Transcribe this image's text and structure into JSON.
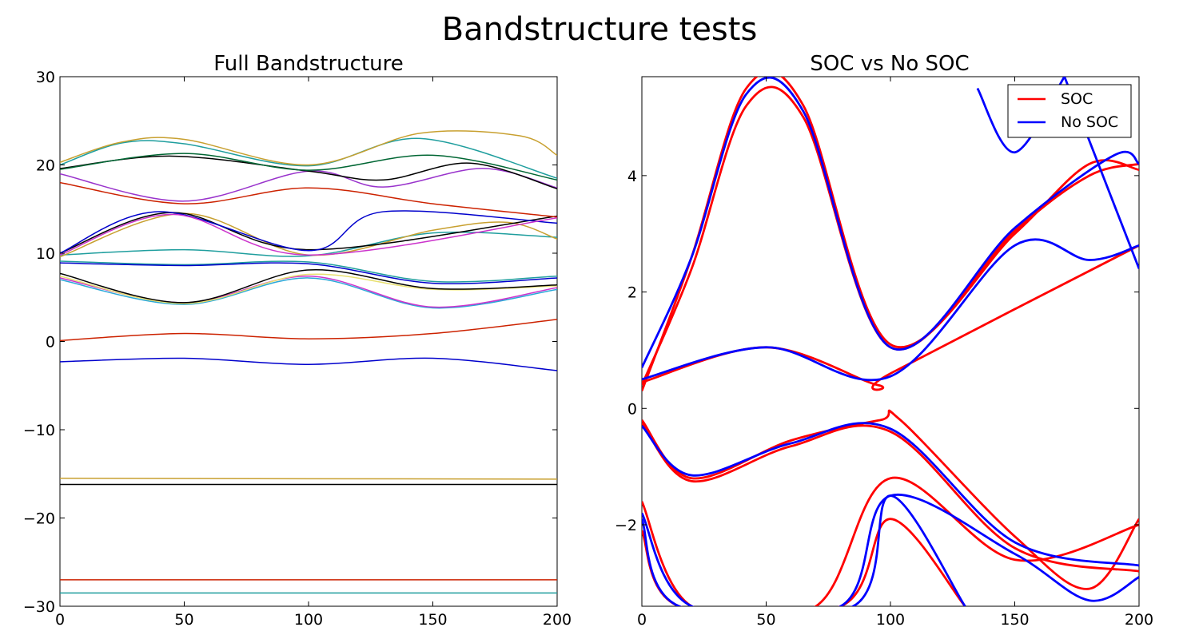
{
  "figure": {
    "suptitle": "Bandstructure tests"
  },
  "chart_data": [
    {
      "type": "line",
      "title": "Full Bandstructure",
      "xlabel": "",
      "ylabel": "",
      "xlim": [
        0,
        200
      ],
      "ylim": [
        -30,
        30
      ],
      "xticks": [
        0,
        50,
        100,
        150,
        200
      ],
      "yticks": [
        -30,
        -20,
        -10,
        0,
        10,
        20,
        30
      ],
      "grid": false,
      "series": [
        {
          "color": "#1f9e9e",
          "points": [
            [
              0,
              -28.5
            ],
            [
              200,
              -28.5
            ]
          ]
        },
        {
          "color": "#cc2200",
          "points": [
            [
              0,
              -27.0
            ],
            [
              200,
              -27.0
            ]
          ]
        },
        {
          "color": "#000000",
          "points": [
            [
              0,
              -16.2
            ],
            [
              200,
              -16.2
            ]
          ]
        },
        {
          "color": "#c8a030",
          "points": [
            [
              0,
              -15.5
            ],
            [
              200,
              -15.6
            ]
          ]
        },
        {
          "color": "#0000cc",
          "points": [
            [
              0,
              -2.3
            ],
            [
              50,
              -1.9
            ],
            [
              100,
              -2.6
            ],
            [
              150,
              -1.9
            ],
            [
              200,
              -3.3
            ]
          ]
        },
        {
          "color": "#cc2200",
          "points": [
            [
              0,
              0.1
            ],
            [
              50,
              0.9
            ],
            [
              100,
              0.3
            ],
            [
              150,
              0.9
            ],
            [
              200,
              2.5
            ]
          ]
        },
        {
          "color": "#2aa8d8",
          "points": [
            [
              0,
              7.0
            ],
            [
              50,
              4.2
            ],
            [
              100,
              7.2
            ],
            [
              150,
              3.8
            ],
            [
              200,
              5.9
            ]
          ]
        },
        {
          "color": "#cc33cc",
          "points": [
            [
              0,
              7.2
            ],
            [
              50,
              4.4
            ],
            [
              100,
              7.4
            ],
            [
              150,
              3.9
            ],
            [
              200,
              6.1
            ]
          ]
        },
        {
          "color": "#e8e070",
          "points": [
            [
              0,
              7.4
            ],
            [
              50,
              4.3
            ],
            [
              100,
              7.6
            ],
            [
              150,
              5.9
            ],
            [
              200,
              6.3
            ]
          ]
        },
        {
          "color": "#000000",
          "points": [
            [
              0,
              7.7
            ],
            [
              50,
              4.4
            ],
            [
              100,
              8.1
            ],
            [
              150,
              6.0
            ],
            [
              200,
              6.4
            ]
          ]
        },
        {
          "color": "#1f9e9e",
          "points": [
            [
              0,
              9.1
            ],
            [
              50,
              8.7
            ],
            [
              100,
              9.0
            ],
            [
              150,
              6.8
            ],
            [
              200,
              7.4
            ]
          ]
        },
        {
          "color": "#0000cc",
          "points": [
            [
              0,
              8.9
            ],
            [
              50,
              8.6
            ],
            [
              100,
              8.8
            ],
            [
              150,
              6.6
            ],
            [
              200,
              7.2
            ]
          ]
        },
        {
          "color": "#1f9e9e",
          "points": [
            [
              0,
              9.8
            ],
            [
              50,
              10.4
            ],
            [
              100,
              9.7
            ],
            [
              150,
              12.3
            ],
            [
              200,
              11.8
            ]
          ]
        },
        {
          "color": "#c8a030",
          "points": [
            [
              0,
              9.6
            ],
            [
              50,
              14.5
            ],
            [
              100,
              9.8
            ],
            [
              150,
              12.6
            ],
            [
              180,
              13.5
            ],
            [
              200,
              11.6
            ]
          ]
        },
        {
          "color": "#000000",
          "points": [
            [
              0,
              10.0
            ],
            [
              45,
              14.6
            ],
            [
              100,
              10.4
            ],
            [
              200,
              14.2
            ]
          ]
        },
        {
          "color": "#0000cc",
          "points": [
            [
              0,
              10.0
            ],
            [
              40,
              14.7
            ],
            [
              100,
              10.3
            ],
            [
              130,
              14.7
            ],
            [
              200,
              13.4
            ]
          ]
        },
        {
          "color": "#cc33cc",
          "points": [
            [
              0,
              9.8
            ],
            [
              45,
              14.4
            ],
            [
              100,
              9.8
            ],
            [
              200,
              14.0
            ]
          ]
        },
        {
          "color": "#cc2200",
          "points": [
            [
              0,
              18.0
            ],
            [
              50,
              15.6
            ],
            [
              100,
              17.4
            ],
            [
              150,
              15.6
            ],
            [
              200,
              14.1
            ]
          ]
        },
        {
          "color": "#9933cc",
          "points": [
            [
              0,
              19.0
            ],
            [
              50,
              15.9
            ],
            [
              100,
              19.3
            ],
            [
              130,
              17.5
            ],
            [
              170,
              19.6
            ],
            [
              200,
              17.4
            ]
          ]
        },
        {
          "color": "#000000",
          "points": [
            [
              0,
              19.6
            ],
            [
              45,
              21.0
            ],
            [
              100,
              19.3
            ],
            [
              130,
              18.3
            ],
            [
              165,
              20.2
            ],
            [
              200,
              17.3
            ]
          ]
        },
        {
          "color": "#006633",
          "points": [
            [
              0,
              19.5
            ],
            [
              50,
              21.3
            ],
            [
              100,
              19.4
            ],
            [
              150,
              21.1
            ],
            [
              200,
              18.3
            ]
          ]
        },
        {
          "color": "#1f9e9e",
          "points": [
            [
              0,
              20.0
            ],
            [
              25,
              22.5
            ],
            [
              50,
              22.4
            ],
            [
              100,
              19.9
            ],
            [
              145,
              23.0
            ],
            [
              200,
              18.5
            ]
          ]
        },
        {
          "color": "#c8a030",
          "points": [
            [
              0,
              20.3
            ],
            [
              25,
              22.6
            ],
            [
              50,
              22.9
            ],
            [
              100,
              20.0
            ],
            [
              145,
              23.6
            ],
            [
              185,
              23.3
            ],
            [
              200,
              21.1
            ]
          ]
        }
      ]
    },
    {
      "type": "line",
      "title": "SOC vs No SOC",
      "xlabel": "",
      "ylabel": "",
      "xlim": [
        0,
        200
      ],
      "ylim": [
        -3.4,
        5.7
      ],
      "xticks": [
        0,
        50,
        100,
        150,
        200
      ],
      "yticks": [
        -2,
        0,
        2,
        4
      ],
      "grid": false,
      "legend": {
        "position": "top-right",
        "entries": [
          {
            "label": "SOC",
            "color": "#ff0000"
          },
          {
            "label": "No SOC",
            "color": "#0000ff"
          }
        ]
      },
      "series": [
        {
          "name": "SOC",
          "color": "#ff0000",
          "points": [
            [
              0,
              0.3
            ],
            [
              20,
              2.6
            ],
            [
              42,
              5.5
            ],
            [
              65,
              5.2
            ],
            [
              100,
              1.1
            ],
            [
              150,
              3.0
            ],
            [
              180,
              4.2
            ],
            [
              200,
              4.1
            ]
          ]
        },
        {
          "name": "SOC",
          "color": "#ff0000",
          "points": [
            [
              0,
              0.4
            ],
            [
              20,
              2.4
            ],
            [
              42,
              5.2
            ],
            [
              65,
              5.0
            ],
            [
              100,
              1.05
            ],
            [
              150,
              3.05
            ],
            [
              180,
              4.0
            ],
            [
              200,
              4.2
            ]
          ]
        },
        {
          "name": "SOC",
          "color": "#ff0000",
          "points": [
            [
              0,
              0.45
            ],
            [
              50,
              1.05
            ],
            [
              95,
              0.4
            ],
            [
              100,
              0.6
            ],
            [
              200,
              2.8
            ]
          ]
        },
        {
          "name": "SOC",
          "color": "#ff0000",
          "points": [
            [
              0,
              -0.2
            ],
            [
              20,
              -1.2
            ],
            [
              60,
              -0.55
            ],
            [
              96,
              -0.2
            ],
            [
              104,
              -0.2
            ],
            [
              150,
              -2.2
            ],
            [
              180,
              -3.1
            ],
            [
              200,
              -1.9
            ]
          ]
        },
        {
          "name": "SOC",
          "color": "#ff0000",
          "points": [
            [
              0,
              -0.25
            ],
            [
              20,
              -1.25
            ],
            [
              60,
              -0.65
            ],
            [
              100,
              -0.4
            ],
            [
              150,
              -2.4
            ],
            [
              200,
              -2.8
            ]
          ]
        },
        {
          "name": "SOC",
          "color": "#ff0000",
          "points": [
            [
              0,
              -1.6
            ],
            [
              20,
              -3.4
            ],
            [
              70,
              -3.4
            ],
            [
              100,
              -1.2
            ],
            [
              150,
              -2.6
            ],
            [
              200,
              -2.0
            ]
          ]
        },
        {
          "name": "SOC",
          "color": "#ff0000",
          "points": [
            [
              0,
              -2.1
            ],
            [
              15,
              -3.4
            ],
            [
              80,
              -3.4
            ],
            [
              100,
              -1.9
            ],
            [
              130,
              -3.4
            ]
          ]
        },
        {
          "name": "No SOC",
          "color": "#0000ff",
          "points": [
            [
              0,
              0.7
            ],
            [
              20,
              2.6
            ],
            [
              42,
              5.4
            ],
            [
              65,
              5.1
            ],
            [
              100,
              1.05
            ],
            [
              150,
              3.1
            ],
            [
              190,
              4.35
            ],
            [
              200,
              4.2
            ]
          ]
        },
        {
          "name": "No SOC",
          "color": "#0000ff",
          "points": [
            [
              0,
              0.5
            ],
            [
              50,
              1.05
            ],
            [
              100,
              0.55
            ],
            [
              150,
              2.8
            ],
            [
              180,
              2.55
            ],
            [
              200,
              2.8
            ]
          ]
        },
        {
          "name": "No SOC",
          "color": "#0000ff",
          "points": [
            [
              0,
              -0.3
            ],
            [
              20,
              -1.15
            ],
            [
              60,
              -0.6
            ],
            [
              100,
              -0.35
            ],
            [
              150,
              -2.3
            ],
            [
              200,
              -2.7
            ]
          ]
        },
        {
          "name": "No SOC",
          "color": "#0000ff",
          "points": [
            [
              0,
              -1.8
            ],
            [
              20,
              -3.4
            ],
            [
              80,
              -3.4
            ],
            [
              100,
              -1.5
            ],
            [
              150,
              -2.5
            ],
            [
              180,
              -3.3
            ],
            [
              200,
              -2.9
            ]
          ]
        },
        {
          "name": "No SOC",
          "color": "#0000ff",
          "points": [
            [
              0,
              -1.9
            ],
            [
              15,
              -3.4
            ],
            [
              85,
              -3.4
            ],
            [
              100,
              -1.5
            ],
            [
              130,
              -3.4
            ]
          ]
        },
        {
          "name": "No SOC",
          "color": "#0000ff",
          "points": [
            [
              135,
              5.5
            ],
            [
              150,
              4.4
            ],
            [
              170,
              5.7
            ]
          ]
        },
        {
          "name": "No SOC",
          "color": "#0000ff",
          "points": [
            [
              170,
              5.7
            ],
            [
              200,
              2.4
            ]
          ]
        }
      ]
    }
  ]
}
